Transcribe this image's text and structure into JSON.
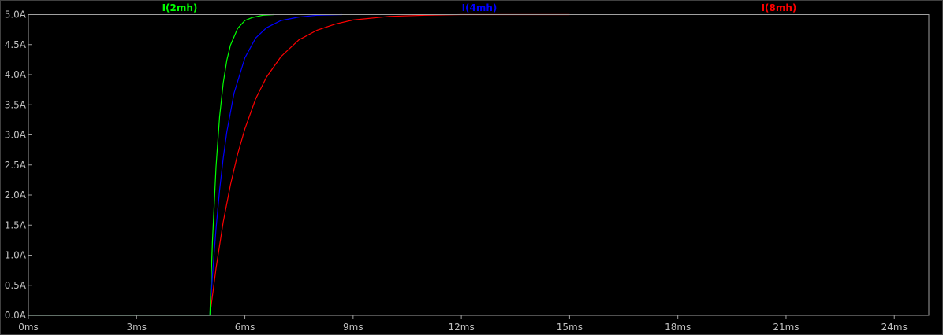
{
  "chart_data": {
    "type": "line",
    "title": "",
    "xlabel": "",
    "ylabel": "",
    "xlim": [
      0,
      25
    ],
    "ylim": [
      0,
      5
    ],
    "grid": false,
    "legend": "top",
    "x_ticks": [
      "0ms",
      "3ms",
      "6ms",
      "9ms",
      "12ms",
      "15ms",
      "18ms",
      "21ms",
      "24ms"
    ],
    "x_tick_values": [
      0,
      3,
      6,
      9,
      12,
      15,
      18,
      21,
      24
    ],
    "y_ticks": [
      "0.0A",
      "0.5A",
      "1.0A",
      "1.5A",
      "2.0A",
      "2.5A",
      "3.0A",
      "3.5A",
      "4.0A",
      "4.5A",
      "5.0A"
    ],
    "y_tick_values": [
      0,
      0.5,
      1,
      1.5,
      2,
      2.5,
      3,
      3.5,
      4,
      4.5,
      5
    ],
    "series": [
      {
        "name": "I(8mh)",
        "color": "#ff0000",
        "x": [
          0,
          5.03,
          5.2,
          5.4,
          5.6,
          5.8,
          6.0,
          6.3,
          6.6,
          7.0,
          7.5,
          8.0,
          8.5,
          9,
          10,
          11,
          12,
          15
        ],
        "y": [
          0,
          0,
          0.78,
          1.55,
          2.17,
          2.68,
          3.1,
          3.6,
          3.96,
          4.3,
          4.58,
          4.74,
          4.84,
          4.91,
          4.97,
          4.99,
          5.0,
          5.0
        ]
      },
      {
        "name": "I(4mh)",
        "color": "#0000ff",
        "x": [
          0,
          5.03,
          5.1,
          5.2,
          5.3,
          5.4,
          5.5,
          5.7,
          6.0,
          6.3,
          6.6,
          7.0,
          7.5,
          8.0,
          8.7
        ],
        "y": [
          0,
          0,
          0.65,
          1.44,
          2.08,
          2.61,
          3.05,
          3.69,
          4.28,
          4.61,
          4.78,
          4.9,
          4.96,
          4.99,
          5.0
        ]
      },
      {
        "name": "I(2mh)",
        "color": "#00ff00",
        "x": [
          0,
          5.03,
          5.1,
          5.2,
          5.3,
          5.4,
          5.5,
          5.6,
          5.8,
          6.0,
          6.2,
          6.5,
          6.8
        ],
        "y": [
          0,
          0,
          1.22,
          2.47,
          3.3,
          3.86,
          4.24,
          4.49,
          4.77,
          4.9,
          4.95,
          4.99,
          5.0
        ]
      }
    ]
  }
}
